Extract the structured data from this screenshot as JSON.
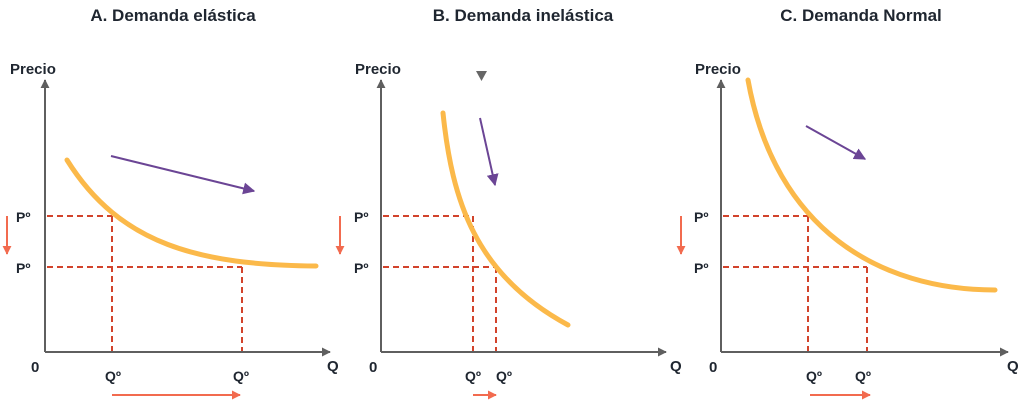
{
  "colors": {
    "curve": "#FBB94A",
    "dashed": "#D2432B",
    "arrow_red": "#F26B4F",
    "arrow_purple": "#6B4595",
    "axis": "#5F5F5F",
    "text": "#1F2630"
  },
  "panels": [
    {
      "title": "A. Demanda elástica",
      "y_label": "Precio",
      "x_label": "Q",
      "origin_label": "0",
      "price_labels": [
        "Pº",
        "Pº"
      ],
      "quantity_labels": [
        "Qº",
        "Qº"
      ]
    },
    {
      "title": "B. Demanda inelástica",
      "y_label": "Precio",
      "x_label": "Q",
      "origin_label": "0",
      "price_labels": [
        "Pº",
        "Pº"
      ],
      "quantity_labels": [
        "Qº",
        "Qº"
      ]
    },
    {
      "title": "C. Demanda Normal",
      "y_label": "Precio",
      "x_label": "Q",
      "origin_label": "0",
      "price_labels": [
        "Pº",
        "Pº"
      ],
      "quantity_labels": [
        "Qº",
        "Qº"
      ]
    }
  ]
}
